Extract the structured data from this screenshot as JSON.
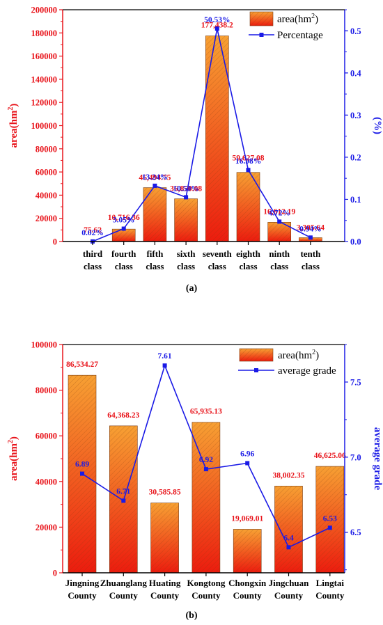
{
  "colors": {
    "left_axis": "#e8131a",
    "right_axis": "#1a1ae6",
    "bar_top": "#f7a033",
    "bar_bottom": "#ec1c0e",
    "bar_stroke": "#7a3b12",
    "axis": "#000000"
  },
  "chart_data": [
    {
      "type": "bar",
      "panel_label": "(a)",
      "categories": [
        [
          "third",
          "class"
        ],
        [
          "fourth",
          "class"
        ],
        [
          "fifth",
          "class"
        ],
        [
          "sixth",
          "class"
        ],
        [
          "seventh",
          "class"
        ],
        [
          "eighth",
          "class"
        ],
        [
          "ninth",
          "class"
        ],
        [
          "tenth",
          "class"
        ]
      ],
      "series": [
        {
          "name": "area(hm²)",
          "kind": "bar",
          "axis": "left",
          "values": [
            75.62,
            10716.36,
            46494.75,
            36850.08,
            177438.2,
            59627.08,
            16612.19,
            3305.64
          ],
          "labels": [
            "75.62",
            "10,716.36",
            "46,494.75",
            "36,850.08",
            "177,438.2",
            "59,627.08",
            "16,612.19",
            "3,305.64"
          ]
        },
        {
          "name": "Percentage",
          "kind": "line",
          "axis": "right",
          "values": [
            0.0002,
            0.0305,
            0.1324,
            0.105,
            0.5053,
            0.1698,
            0.0472,
            0.0094
          ],
          "labels": [
            "0.02%",
            "3.05%",
            "13.24%",
            "10.50%",
            "50.53%",
            "16.98%",
            "4.72%",
            "0.94%"
          ]
        }
      ],
      "ylabel": "area(hm²)",
      "ylabel_main": "area(hm",
      "ylabel_sup": "2",
      "ylabel_close": ")",
      "y2label": "(%)",
      "ylim": [
        0,
        200000
      ],
      "y_ticks": [
        "0",
        "20000",
        "40000",
        "60000",
        "80000",
        "100000",
        "120000",
        "140000",
        "160000",
        "180000",
        "200000"
      ],
      "y2lim": [
        0,
        0.55
      ],
      "y2_ticks": [
        "0.0",
        "0.1",
        "0.2",
        "0.3",
        "0.4",
        "0.5"
      ],
      "legend": {
        "position": "top-right",
        "bar_main": "area(hm",
        "bar_sup": "2",
        "bar_close": ")",
        "line": "Percentage"
      },
      "grid": false
    },
    {
      "type": "bar",
      "panel_label": "(b)",
      "categories": [
        [
          "Jingning",
          "County"
        ],
        [
          "Zhuanglang",
          "County"
        ],
        [
          "Huating",
          "County"
        ],
        [
          "Kongtong",
          "County"
        ],
        [
          "Chongxin",
          "County"
        ],
        [
          "Jingchuan",
          "County"
        ],
        [
          "Lingtai",
          "County"
        ]
      ],
      "series": [
        {
          "name": "area(hm²)",
          "kind": "bar",
          "axis": "left",
          "values": [
            86534.27,
            64368.23,
            30585.85,
            65935.13,
            19069.01,
            38002.35,
            46625.06
          ],
          "labels": [
            "86,534.27",
            "64,368.23",
            "30,585.85",
            "65,935.13",
            "19,069.01",
            "38,002.35",
            "46,625.06"
          ]
        },
        {
          "name": "average grade",
          "kind": "line",
          "axis": "right",
          "values": [
            6.89,
            6.71,
            7.61,
            6.92,
            6.96,
            6.4,
            6.53
          ],
          "labels": [
            "6.89",
            "6.71",
            "7.61",
            "6.92",
            "6.96",
            "6.4",
            "6.53"
          ]
        }
      ],
      "ylabel": "area(hm²)",
      "ylabel_main": "area(hm",
      "ylabel_sup": "2",
      "ylabel_close": ")",
      "y2label": "average grade",
      "ylim": [
        0,
        100000
      ],
      "y_ticks": [
        "0",
        "20000",
        "40000",
        "60000",
        "80000",
        "100000"
      ],
      "y2lim": [
        6.23,
        7.75
      ],
      "y2_ticks": [
        "6.5",
        "7.0",
        "7.5"
      ],
      "legend": {
        "position": "top-right",
        "bar_main": "area(hm",
        "bar_sup": "2",
        "bar_close": ")",
        "line": "average grade"
      },
      "grid": false
    }
  ]
}
